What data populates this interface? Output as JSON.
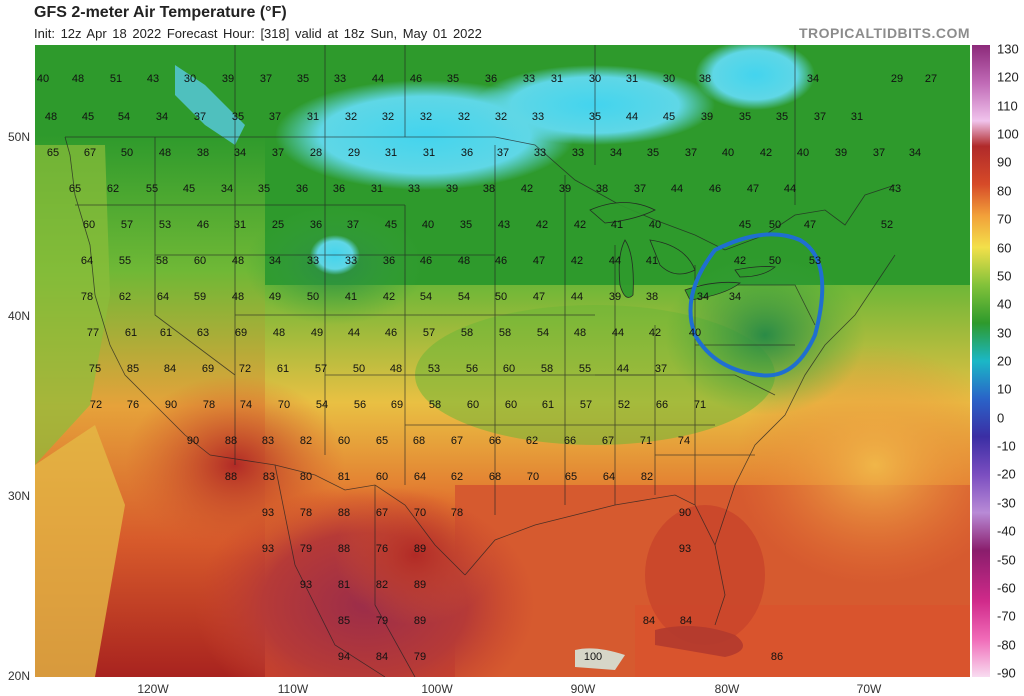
{
  "header": {
    "title": "GFS 2-meter Air Temperature (°F)",
    "init": "Init: 12z Apr 18 2022   Forecast Hour: [318]   valid at 18z Sun, May 01 2022",
    "brand": "TROPICALTIDBITS.COM"
  },
  "lat_labels": [
    "50N",
    "40N",
    "30N",
    "20N"
  ],
  "lon_labels": [
    "120W",
    "110W",
    "100W",
    "90W",
    "80W",
    "70W"
  ],
  "colorbar": {
    "ticks": [
      "130",
      "120",
      "110",
      "100",
      "90",
      "80",
      "70",
      "60",
      "50",
      "40",
      "30",
      "20",
      "10",
      "0",
      "-10",
      "-20",
      "-30",
      "-40",
      "-50",
      "-60",
      "-70",
      "-80",
      "-90"
    ]
  },
  "annotation": {
    "shape": "circle",
    "color": "#1f6fd0",
    "region": "Mid-Atlantic / Northeast"
  },
  "station_values": [
    [
      "40",
      0,
      0
    ],
    [
      "48",
      0,
      0
    ],
    [
      "51",
      0,
      0
    ],
    [
      "43",
      0,
      0
    ],
    [
      "30",
      0,
      0
    ],
    [
      "39",
      0,
      0
    ],
    [
      "37",
      0,
      0
    ],
    [
      "35",
      0,
      0
    ],
    [
      "33",
      0,
      0
    ],
    [
      "44",
      0,
      0
    ],
    [
      "46",
      0,
      0
    ],
    [
      "35",
      0,
      0
    ],
    [
      "36",
      0,
      0
    ],
    [
      "33",
      0,
      0
    ],
    [
      "31",
      0,
      0
    ],
    [
      "30",
      0,
      0
    ],
    [
      "31",
      0,
      0
    ],
    [
      "30",
      0,
      0
    ],
    [
      "38",
      0,
      0
    ],
    [
      "34",
      0,
      0
    ],
    [
      "29",
      0,
      0
    ],
    [
      "27",
      0,
      0
    ],
    [
      "48",
      0,
      0
    ],
    [
      "45",
      0,
      0
    ],
    [
      "54",
      0,
      0
    ],
    [
      "34",
      0,
      0
    ],
    [
      "37",
      0,
      0
    ],
    [
      "35",
      0,
      0
    ],
    [
      "37",
      0,
      0
    ],
    [
      "31",
      0,
      0
    ],
    [
      "32",
      0,
      0
    ],
    [
      "32",
      0,
      0
    ],
    [
      "32",
      0,
      0
    ],
    [
      "32",
      0,
      0
    ],
    [
      "32",
      0,
      0
    ],
    [
      "33",
      0,
      0
    ],
    [
      "35",
      0,
      0
    ],
    [
      "44",
      0,
      0
    ],
    [
      "45",
      0,
      0
    ],
    [
      "39",
      0,
      0
    ],
    [
      "35",
      0,
      0
    ],
    [
      "35",
      0,
      0
    ],
    [
      "37",
      0,
      0
    ],
    [
      "31",
      0,
      0
    ],
    [
      "65",
      0,
      0
    ],
    [
      "67",
      0,
      0
    ],
    [
      "50",
      0,
      0
    ],
    [
      "48",
      0,
      0
    ],
    [
      "38",
      0,
      0
    ],
    [
      "34",
      0,
      0
    ],
    [
      "37",
      0,
      0
    ],
    [
      "28",
      0,
      0
    ],
    [
      "29",
      0,
      0
    ],
    [
      "31",
      0,
      0
    ],
    [
      "31",
      0,
      0
    ],
    [
      "36",
      0,
      0
    ],
    [
      "37",
      0,
      0
    ],
    [
      "33",
      0,
      0
    ],
    [
      "33",
      0,
      0
    ],
    [
      "34",
      0,
      0
    ],
    [
      "35",
      0,
      0
    ],
    [
      "37",
      0,
      0
    ],
    [
      "40",
      0,
      0
    ],
    [
      "42",
      0,
      0
    ],
    [
      "40",
      0,
      0
    ],
    [
      "39",
      0,
      0
    ],
    [
      "37",
      0,
      0
    ],
    [
      "34",
      0,
      0
    ],
    [
      "65",
      0,
      0
    ],
    [
      "62",
      0,
      0
    ],
    [
      "55",
      0,
      0
    ],
    [
      "45",
      0,
      0
    ],
    [
      "34",
      0,
      0
    ],
    [
      "35",
      0,
      0
    ],
    [
      "36",
      0,
      0
    ],
    [
      "36",
      0,
      0
    ],
    [
      "31",
      0,
      0
    ],
    [
      "33",
      0,
      0
    ],
    [
      "39",
      0,
      0
    ],
    [
      "38",
      0,
      0
    ],
    [
      "42",
      0,
      0
    ],
    [
      "39",
      0,
      0
    ],
    [
      "38",
      0,
      0
    ],
    [
      "37",
      0,
      0
    ],
    [
      "44",
      0,
      0
    ],
    [
      "46",
      0,
      0
    ],
    [
      "47",
      0,
      0
    ],
    [
      "44",
      0,
      0
    ],
    [
      "43",
      0,
      0
    ],
    [
      "60",
      0,
      0
    ],
    [
      "57",
      0,
      0
    ],
    [
      "53",
      0,
      0
    ],
    [
      "46",
      0,
      0
    ],
    [
      "31",
      0,
      0
    ],
    [
      "25",
      0,
      0
    ],
    [
      "36",
      0,
      0
    ],
    [
      "37",
      0,
      0
    ],
    [
      "45",
      0,
      0
    ],
    [
      "40",
      0,
      0
    ],
    [
      "35",
      0,
      0
    ],
    [
      "43",
      0,
      0
    ],
    [
      "42",
      0,
      0
    ],
    [
      "42",
      0,
      0
    ],
    [
      "41",
      0,
      0
    ],
    [
      "40",
      0,
      0
    ],
    [
      "45",
      0,
      0
    ],
    [
      "50",
      0,
      0
    ],
    [
      "47",
      0,
      0
    ],
    [
      "52",
      0,
      0
    ],
    [
      "64",
      0,
      0
    ],
    [
      "55",
      0,
      0
    ],
    [
      "58",
      0,
      0
    ],
    [
      "60",
      0,
      0
    ],
    [
      "48",
      0,
      0
    ],
    [
      "34",
      0,
      0
    ],
    [
      "33",
      0,
      0
    ],
    [
      "33",
      0,
      0
    ],
    [
      "36",
      0,
      0
    ],
    [
      "46",
      0,
      0
    ],
    [
      "48",
      0,
      0
    ],
    [
      "46",
      0,
      0
    ],
    [
      "47",
      0,
      0
    ],
    [
      "42",
      0,
      0
    ],
    [
      "44",
      0,
      0
    ],
    [
      "41",
      0,
      0
    ],
    [
      "42",
      0,
      0
    ],
    [
      "50",
      0,
      0
    ],
    [
      "53",
      0,
      0
    ],
    [
      "78",
      0,
      0
    ],
    [
      "62",
      0,
      0
    ],
    [
      "64",
      0,
      0
    ],
    [
      "59",
      0,
      0
    ],
    [
      "48",
      0,
      0
    ],
    [
      "49",
      0,
      0
    ],
    [
      "50",
      0,
      0
    ],
    [
      "41",
      0,
      0
    ],
    [
      "42",
      0,
      0
    ],
    [
      "54",
      0,
      0
    ],
    [
      "54",
      0,
      0
    ],
    [
      "50",
      0,
      0
    ],
    [
      "47",
      0,
      0
    ],
    [
      "44",
      0,
      0
    ],
    [
      "39",
      0,
      0
    ],
    [
      "38",
      0,
      0
    ],
    [
      "34",
      0,
      0
    ],
    [
      "34",
      0,
      0
    ],
    [
      "77",
      0,
      0
    ],
    [
      "61",
      0,
      0
    ],
    [
      "61",
      0,
      0
    ],
    [
      "63",
      0,
      0
    ],
    [
      "69",
      0,
      0
    ],
    [
      "48",
      0,
      0
    ],
    [
      "49",
      0,
      0
    ],
    [
      "44",
      0,
      0
    ],
    [
      "46",
      0,
      0
    ],
    [
      "57",
      0,
      0
    ],
    [
      "58",
      0,
      0
    ],
    [
      "58",
      0,
      0
    ],
    [
      "54",
      0,
      0
    ],
    [
      "48",
      0,
      0
    ],
    [
      "44",
      0,
      0
    ],
    [
      "42",
      0,
      0
    ],
    [
      "40",
      0,
      0
    ],
    [
      "75",
      0,
      0
    ],
    [
      "85",
      0,
      0
    ],
    [
      "84",
      0,
      0
    ],
    [
      "69",
      0,
      0
    ],
    [
      "72",
      0,
      0
    ],
    [
      "61",
      0,
      0
    ],
    [
      "57",
      0,
      0
    ],
    [
      "50",
      0,
      0
    ],
    [
      "48",
      0,
      0
    ],
    [
      "53",
      0,
      0
    ],
    [
      "56",
      0,
      0
    ],
    [
      "60",
      0,
      0
    ],
    [
      "58",
      0,
      0
    ],
    [
      "55",
      0,
      0
    ],
    [
      "44",
      0,
      0
    ],
    [
      "37",
      0,
      0
    ],
    [
      "72",
      0,
      0
    ],
    [
      "76",
      0,
      0
    ],
    [
      "90",
      0,
      0
    ],
    [
      "78",
      0,
      0
    ],
    [
      "74",
      0,
      0
    ],
    [
      "70",
      0,
      0
    ],
    [
      "54",
      0,
      0
    ],
    [
      "56",
      0,
      0
    ],
    [
      "69",
      0,
      0
    ],
    [
      "58",
      0,
      0
    ],
    [
      "60",
      0,
      0
    ],
    [
      "60",
      0,
      0
    ],
    [
      "61",
      0,
      0
    ],
    [
      "57",
      0,
      0
    ],
    [
      "52",
      0,
      0
    ],
    [
      "66",
      0,
      0
    ],
    [
      "71",
      0,
      0
    ],
    [
      "90",
      0,
      0
    ],
    [
      "88",
      0,
      0
    ],
    [
      "83",
      0,
      0
    ],
    [
      "82",
      0,
      0
    ],
    [
      "60",
      0,
      0
    ],
    [
      "65",
      0,
      0
    ],
    [
      "68",
      0,
      0
    ],
    [
      "67",
      0,
      0
    ],
    [
      "66",
      0,
      0
    ],
    [
      "62",
      0,
      0
    ],
    [
      "66",
      0,
      0
    ],
    [
      "67",
      0,
      0
    ],
    [
      "71",
      0,
      0
    ],
    [
      "74",
      0,
      0
    ],
    [
      "88",
      0,
      0
    ],
    [
      "83",
      0,
      0
    ],
    [
      "80",
      0,
      0
    ],
    [
      "81",
      0,
      0
    ],
    [
      "60",
      0,
      0
    ],
    [
      "64",
      0,
      0
    ],
    [
      "62",
      0,
      0
    ],
    [
      "68",
      0,
      0
    ],
    [
      "70",
      0,
      0
    ],
    [
      "65",
      0,
      0
    ],
    [
      "64",
      0,
      0
    ],
    [
      "82",
      0,
      0
    ],
    [
      "93",
      0,
      0
    ],
    [
      "78",
      0,
      0
    ],
    [
      "88",
      0,
      0
    ],
    [
      "67",
      0,
      0
    ],
    [
      "70",
      0,
      0
    ],
    [
      "78",
      0,
      0
    ],
    [
      "90",
      0,
      0
    ],
    [
      "93",
      0,
      0
    ],
    [
      "79",
      0,
      0
    ],
    [
      "88",
      0,
      0
    ],
    [
      "76",
      0,
      0
    ],
    [
      "89",
      0,
      0
    ],
    [
      "93",
      0,
      0
    ],
    [
      "93",
      0,
      0
    ],
    [
      "81",
      0,
      0
    ],
    [
      "82",
      0,
      0
    ],
    [
      "89",
      0,
      0
    ],
    [
      "85",
      0,
      0
    ],
    [
      "79",
      0,
      0
    ],
    [
      "89",
      0,
      0
    ],
    [
      "84",
      0,
      0
    ],
    [
      "84",
      0,
      0
    ],
    [
      "94",
      0,
      0
    ],
    [
      "84",
      0,
      0
    ],
    [
      "79",
      0,
      0
    ],
    [
      "100",
      0,
      0
    ],
    [
      "86",
      0,
      0
    ]
  ]
}
